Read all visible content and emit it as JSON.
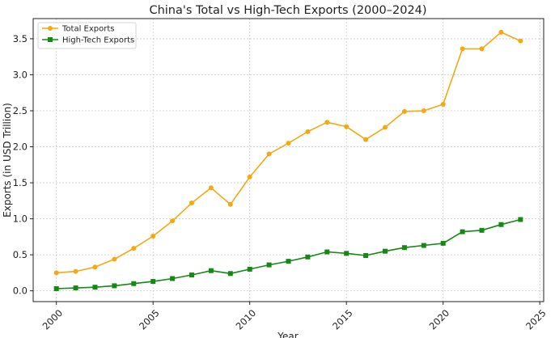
{
  "chart_data": {
    "type": "line",
    "title": "China's Total vs High-Tech Exports (2000–2024)",
    "xlabel": "Year",
    "ylabel": "Exports (in USD Trillion)",
    "x": [
      2000,
      2001,
      2002,
      2003,
      2004,
      2005,
      2006,
      2007,
      2008,
      2009,
      2010,
      2011,
      2012,
      2013,
      2014,
      2015,
      2016,
      2017,
      2018,
      2019,
      2020,
      2021,
      2022,
      2023,
      2024
    ],
    "xlim": [
      1998.8,
      2025.2
    ],
    "ylim": [
      -0.15,
      3.78
    ],
    "x_ticks": [
      2000,
      2005,
      2010,
      2015,
      2020,
      2025
    ],
    "x_tick_labels": [
      "2000",
      "2005",
      "2010",
      "2015",
      "2020",
      "2025"
    ],
    "y_ticks": [
      0.0,
      0.5,
      1.0,
      1.5,
      2.0,
      2.5,
      3.0,
      3.5
    ],
    "y_tick_labels": [
      "0.0",
      "0.5",
      "1.0",
      "1.5",
      "2.0",
      "2.5",
      "3.0",
      "3.5"
    ],
    "grid": true,
    "legend_position": "top-left",
    "series": [
      {
        "name": "Total Exports",
        "color": "#f5a812",
        "marker": "circle",
        "values": [
          0.25,
          0.27,
          0.33,
          0.44,
          0.59,
          0.76,
          0.97,
          1.22,
          1.43,
          1.2,
          1.58,
          1.9,
          2.05,
          2.21,
          2.34,
          2.28,
          2.1,
          2.27,
          2.49,
          2.5,
          2.59,
          3.36,
          3.36,
          3.59,
          3.47
        ]
      },
      {
        "name": "High-Tech Exports",
        "color": "#138a13",
        "marker": "square",
        "values": [
          0.03,
          0.04,
          0.05,
          0.07,
          0.1,
          0.13,
          0.17,
          0.22,
          0.28,
          0.24,
          0.3,
          0.36,
          0.41,
          0.47,
          0.54,
          0.52,
          0.49,
          0.55,
          0.6,
          0.63,
          0.66,
          0.82,
          0.84,
          0.92,
          0.99
        ]
      }
    ]
  }
}
